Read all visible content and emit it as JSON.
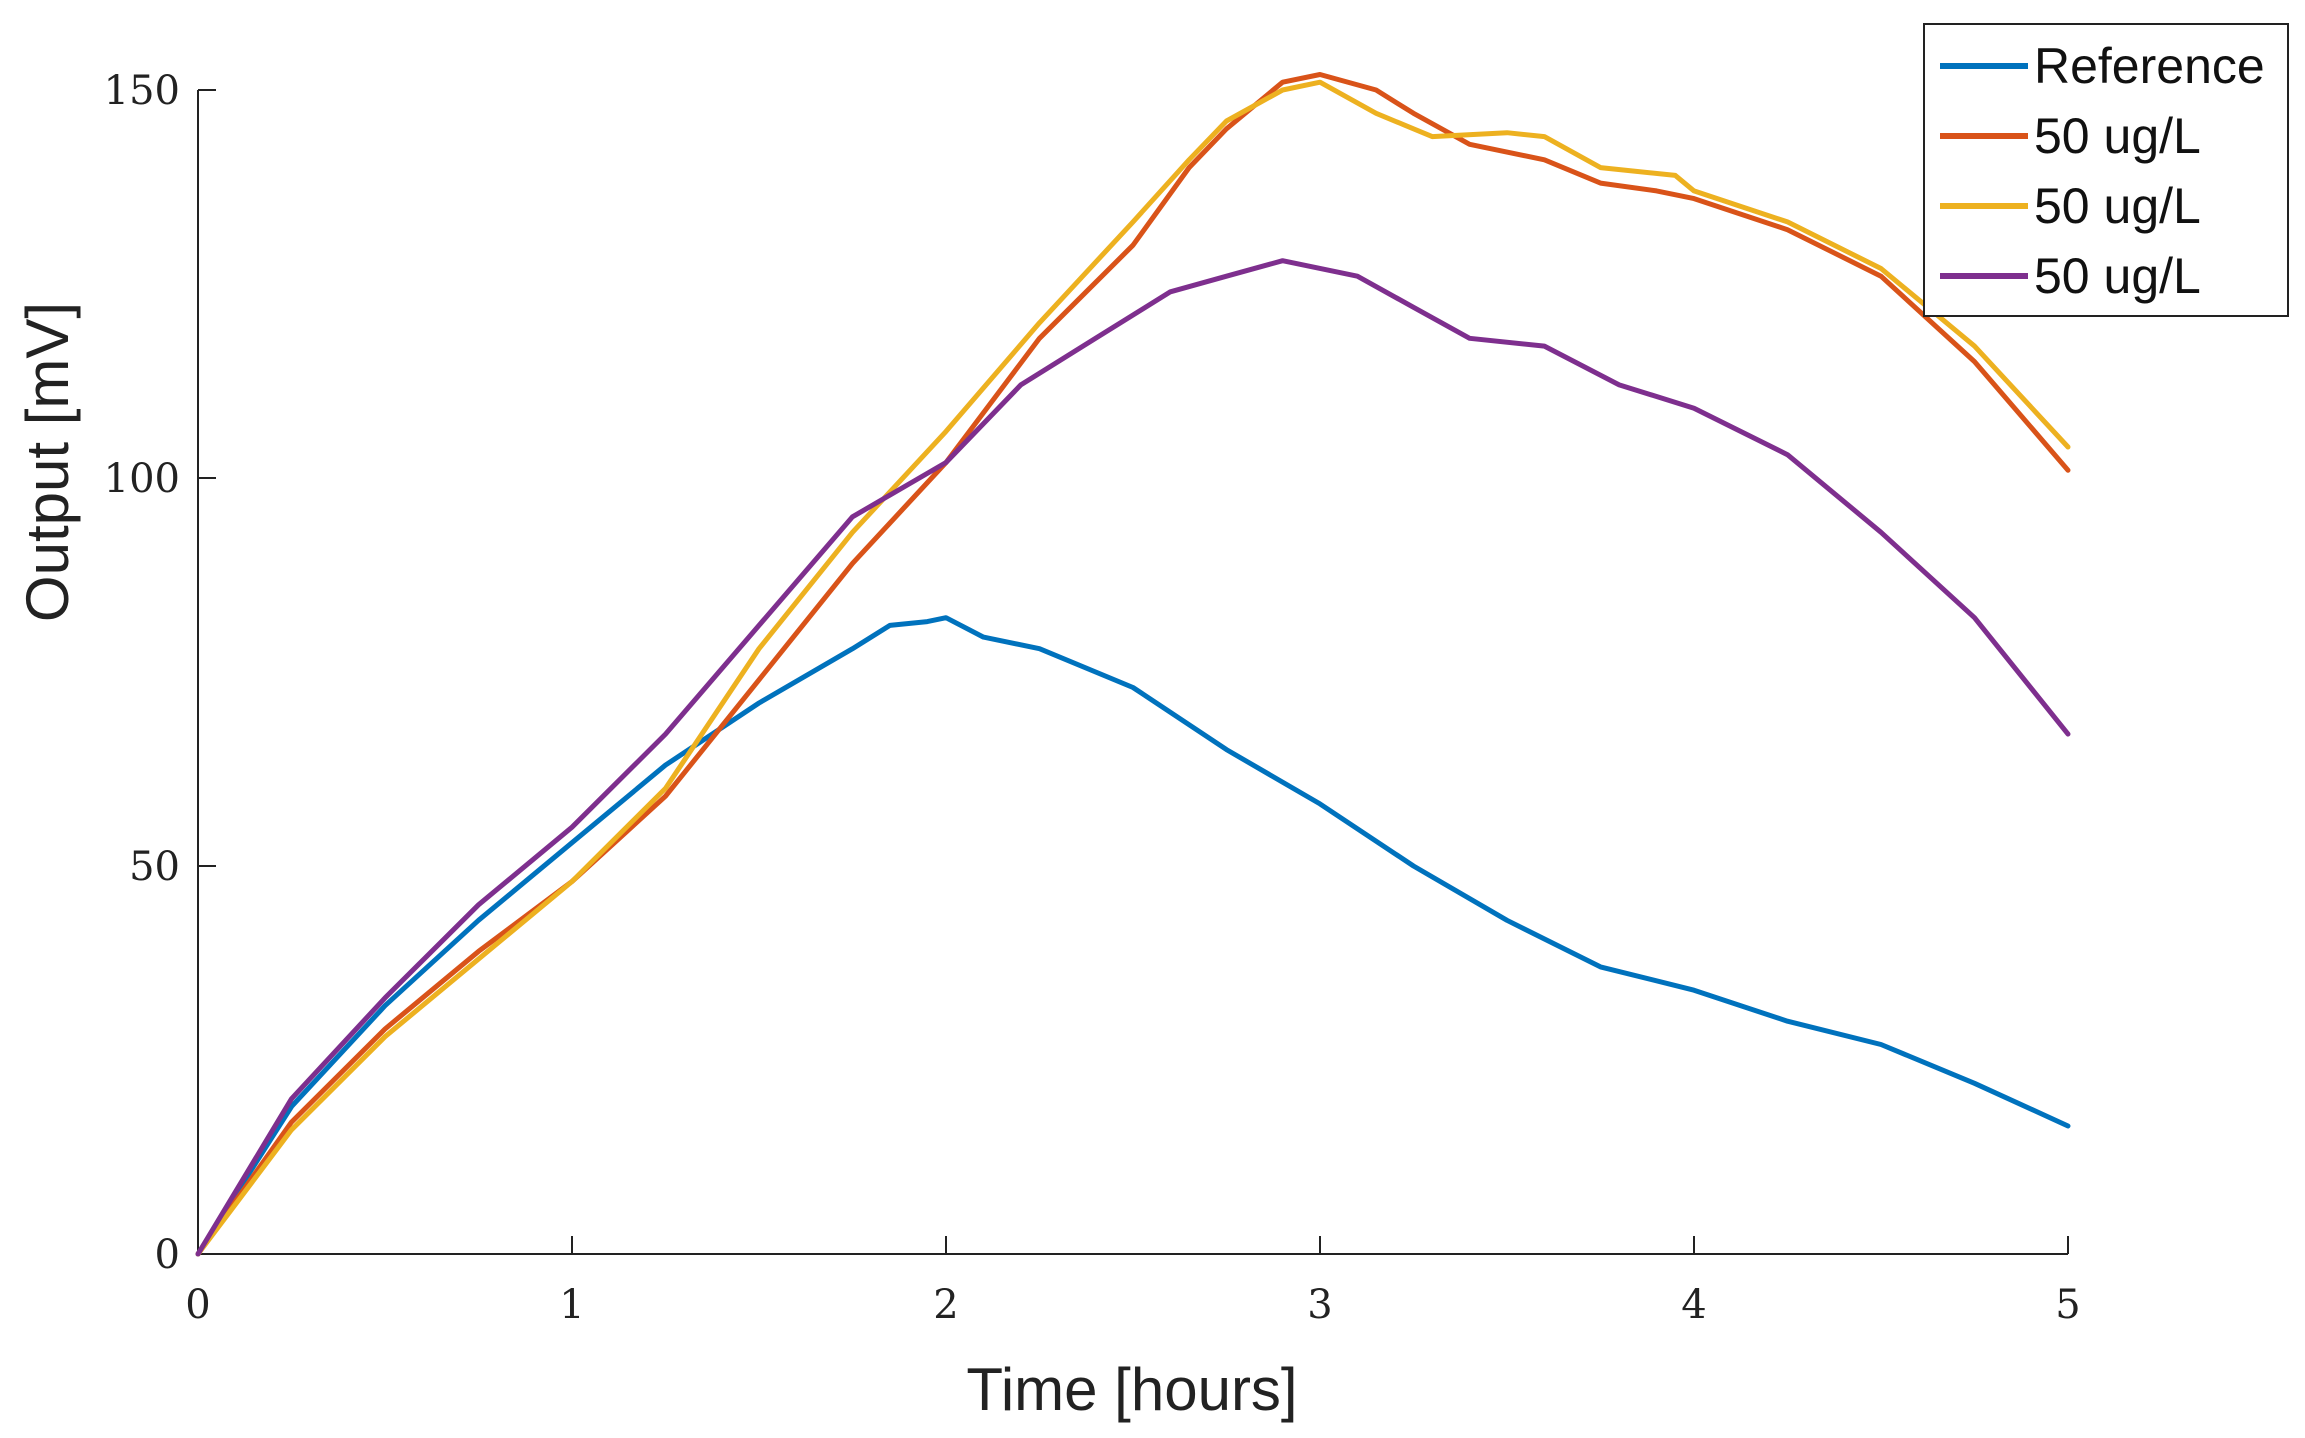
{
  "chart_data": {
    "type": "line",
    "xlabel": "Time [hours]",
    "ylabel": "Output [mV]",
    "xlim": [
      0,
      5
    ],
    "ylim": [
      0,
      150
    ],
    "xticks": [
      0,
      1,
      2,
      3,
      4,
      5
    ],
    "yticks": [
      0,
      50,
      100,
      150
    ],
    "grid": false,
    "legend_position": "top-right",
    "series": [
      {
        "name": "Reference",
        "color": "#0072BD",
        "points": [
          [
            0,
            0
          ],
          [
            0.25,
            19
          ],
          [
            0.5,
            32
          ],
          [
            0.75,
            43
          ],
          [
            1,
            53
          ],
          [
            1.25,
            63
          ],
          [
            1.5,
            71
          ],
          [
            1.75,
            78
          ],
          [
            1.85,
            81
          ],
          [
            1.95,
            81.5
          ],
          [
            2,
            82
          ],
          [
            2.1,
            79.5
          ],
          [
            2.25,
            78
          ],
          [
            2.5,
            73
          ],
          [
            2.75,
            65
          ],
          [
            3,
            58
          ],
          [
            3.25,
            50
          ],
          [
            3.5,
            43
          ],
          [
            3.75,
            37
          ],
          [
            4,
            34
          ],
          [
            4.25,
            30
          ],
          [
            4.5,
            27
          ],
          [
            4.75,
            22
          ],
          [
            5,
            16.5
          ]
        ]
      },
      {
        "name": "50 ug/L",
        "color": "#D95319",
        "points": [
          [
            0,
            0
          ],
          [
            0.25,
            17
          ],
          [
            0.5,
            29
          ],
          [
            0.75,
            39
          ],
          [
            1,
            48
          ],
          [
            1.25,
            59
          ],
          [
            1.5,
            74
          ],
          [
            1.75,
            89
          ],
          [
            2,
            102
          ],
          [
            2.25,
            118
          ],
          [
            2.5,
            130
          ],
          [
            2.65,
            140
          ],
          [
            2.75,
            145
          ],
          [
            2.9,
            151
          ],
          [
            3,
            152
          ],
          [
            3.15,
            150
          ],
          [
            3.25,
            147
          ],
          [
            3.4,
            143
          ],
          [
            3.6,
            141
          ],
          [
            3.75,
            138
          ],
          [
            3.9,
            137
          ],
          [
            4,
            136
          ],
          [
            4.25,
            132
          ],
          [
            4.5,
            126
          ],
          [
            4.75,
            115
          ],
          [
            5,
            101
          ]
        ]
      },
      {
        "name": "50 ug/L",
        "color": "#EDB120",
        "points": [
          [
            0,
            0
          ],
          [
            0.25,
            16
          ],
          [
            0.5,
            28
          ],
          [
            0.75,
            38
          ],
          [
            1,
            48
          ],
          [
            1.25,
            60
          ],
          [
            1.5,
            78
          ],
          [
            1.75,
            93
          ],
          [
            2,
            106
          ],
          [
            2.25,
            120
          ],
          [
            2.5,
            133
          ],
          [
            2.65,
            141
          ],
          [
            2.75,
            146
          ],
          [
            2.9,
            150
          ],
          [
            3,
            151
          ],
          [
            3.15,
            147
          ],
          [
            3.3,
            144
          ],
          [
            3.5,
            144.5
          ],
          [
            3.6,
            144
          ],
          [
            3.75,
            140
          ],
          [
            3.95,
            139
          ],
          [
            4,
            137
          ],
          [
            4.25,
            133
          ],
          [
            4.5,
            127
          ],
          [
            4.75,
            117
          ],
          [
            5,
            104
          ]
        ]
      },
      {
        "name": "50 ug/L",
        "color": "#7E2F8E",
        "points": [
          [
            0,
            0
          ],
          [
            0.25,
            20
          ],
          [
            0.5,
            33
          ],
          [
            0.75,
            45
          ],
          [
            1,
            55
          ],
          [
            1.25,
            67
          ],
          [
            1.5,
            81
          ],
          [
            1.75,
            95
          ],
          [
            2,
            102
          ],
          [
            2.2,
            112
          ],
          [
            2.4,
            118
          ],
          [
            2.6,
            124
          ],
          [
            2.75,
            126
          ],
          [
            2.9,
            128
          ],
          [
            3.1,
            126
          ],
          [
            3.25,
            122
          ],
          [
            3.4,
            118
          ],
          [
            3.6,
            117
          ],
          [
            3.8,
            112
          ],
          [
            4,
            109
          ],
          [
            4.25,
            103
          ],
          [
            4.5,
            93
          ],
          [
            4.75,
            82
          ],
          [
            5,
            67
          ]
        ]
      }
    ]
  }
}
